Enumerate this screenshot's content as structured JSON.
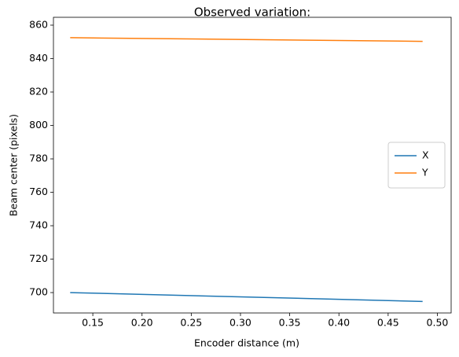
{
  "chart_data": {
    "type": "line",
    "title": "Observed variation:",
    "x_label": "Encoder distance (m)",
    "y_label": "Beam center (pixels)",
    "x": [
      0.127,
      0.485
    ],
    "series": [
      {
        "name": "X",
        "color": "#1f77b4",
        "values": [
          700.0,
          694.7
        ]
      },
      {
        "name": "Y",
        "color": "#ff7f0e",
        "values": [
          852.5,
          850.3
        ]
      }
    ],
    "xlim": [
      0.11,
      0.514
    ],
    "xticks": [
      0.15,
      {
        "value": 0.2,
        "label": "0.20"
      },
      0.25,
      {
        "value": 0.3,
        "label": "0.30"
      },
      0.35,
      {
        "value": 0.4,
        "label": "0.40"
      },
      0.45,
      {
        "value": 0.5,
        "label": "0.50"
      }
    ],
    "ylim": [
      687.8,
      864.7
    ],
    "yticks": [
      700,
      720,
      740,
      760,
      780,
      800,
      820,
      840,
      860
    ],
    "legend": "center right",
    "grid": false
  }
}
